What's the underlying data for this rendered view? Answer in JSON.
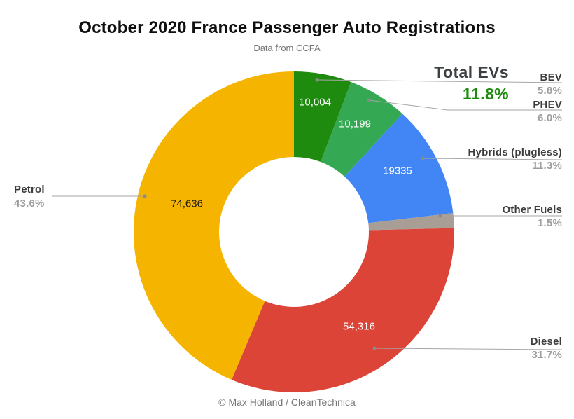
{
  "header": {
    "title": "October 2020 France Passenger Auto Registrations",
    "subtitle": "Data from CCFA"
  },
  "annotation": {
    "label": "Total EVs",
    "value": "11.8%",
    "color": "#1E8B0E"
  },
  "chart_data": {
    "type": "pie",
    "donut": true,
    "title": "October 2020 France Passenger Auto Registrations",
    "subtitle": "Data from CCFA",
    "direction": "clockwise",
    "start_angle_deg": 0,
    "legend_position": "callouts",
    "slices": [
      {
        "label": "BEV",
        "value": 10004,
        "value_label": "10,004",
        "pct": 5.8,
        "pct_label": "5.8%",
        "color": "#1E8B0E"
      },
      {
        "label": "PHEV",
        "value": 10199,
        "value_label": "10,199",
        "pct": 6.0,
        "pct_label": "6.0%",
        "color": "#34A853"
      },
      {
        "label": "Hybrids (plugless)",
        "value": 19335,
        "value_label": "19335",
        "pct": 11.3,
        "pct_label": "11.3%",
        "color": "#4285F4"
      },
      {
        "label": "Other Fuels",
        "value_label": "",
        "pct": 1.5,
        "pct_label": "1.5%",
        "color": "#A89E96"
      },
      {
        "label": "Diesel",
        "value": 54316,
        "value_label": "54,316",
        "pct": 31.7,
        "pct_label": "31.7%",
        "color": "#DB4437"
      },
      {
        "label": "Petrol",
        "value": 74636,
        "value_label": "74,636",
        "pct": 43.6,
        "pct_label": "43.6%",
        "color": "#F4B400"
      }
    ],
    "total_evs": {
      "label": "Total EVs",
      "pct_label": "11.8%"
    }
  },
  "footer": {
    "credit": "© Max Holland / CleanTechnica"
  }
}
